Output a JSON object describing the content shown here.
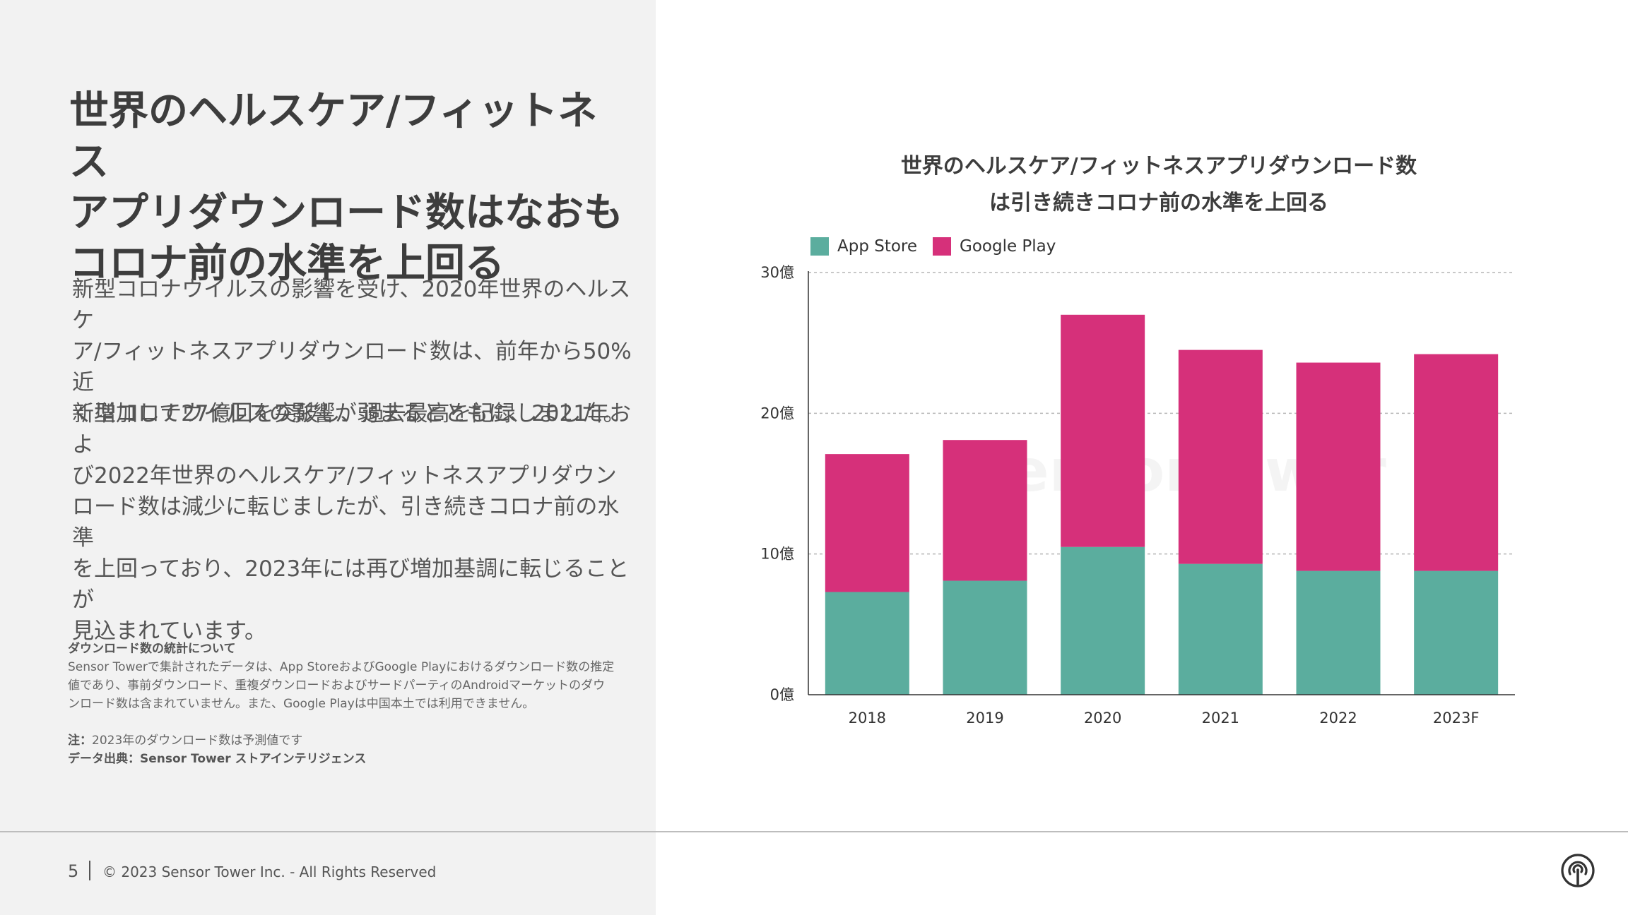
{
  "slide": {
    "title_lines": [
      "世界のヘルスケア/フィットネス",
      "アプリダウンロード数はなおも",
      "コロナ前の水準を上回る"
    ],
    "paragraph1_lines": [
      "新型コロナウイルスの影響を受け、2020年世界のヘルスケ",
      "ア/フィットネスアプリダウンロード数は、前年から50%近",
      "く増加して27億回を突破し、過去最高を記録しました。"
    ],
    "paragraph2_lines": [
      "新型コロナウイルスの影響が弱まるとともに、2021年およ",
      "び2022年世界のヘルスケア/フィットネスアプリダウン",
      "ロード数は減少に転じましたが、引き続きコロナ前の水準",
      "を上回っており、2023年には再び増加基調に転じることが",
      "見込まれています。"
    ],
    "notes": {
      "heading": "ダウンロード数の統計について",
      "body_lines": [
        "Sensor Towerで集計されたデータは、App StoreおよびGoogle Playにおけるダウンロード数の推定",
        "値であり、事前ダウンロード、重複ダウンロードおよびサードパーティのAndroidマーケットのダウ",
        "ンロード数は含まれていません。また、Google Playは中国本土では利用できません。"
      ],
      "note_label": "注：",
      "note_text": "2023年のダウンロード数は予測値です",
      "source": "データ出典：Sensor Tower ストアインテリジェンス"
    },
    "footer": {
      "page_number": "5",
      "copyright": "© 2023 Sensor Tower Inc. - All Rights Reserved"
    },
    "logo_icon": "sensor-tower-logo-icon",
    "watermark": "SensorTower"
  },
  "chart_data": {
    "type": "bar",
    "stacked": true,
    "title_lines": [
      "世界のヘルスケア/フィットネスアプリダウンロード数",
      "は引き続きコロナ前の水準を上回る"
    ],
    "categories": [
      "2018",
      "2019",
      "2020",
      "2021",
      "2022",
      "2023F"
    ],
    "series": [
      {
        "name": "App Store",
        "color": "#5BAD9E",
        "values": [
          7.3,
          8.1,
          10.5,
          9.3,
          8.8,
          8.8
        ]
      },
      {
        "name": "Google Play",
        "color": "#D6307A",
        "values": [
          9.8,
          10.0,
          16.5,
          15.2,
          14.8,
          15.4
        ]
      }
    ],
    "ylim": [
      0,
      30
    ],
    "yticks": [
      0,
      10,
      20,
      30
    ],
    "ytick_labels": [
      "0億",
      "10億",
      "20億",
      "30億"
    ],
    "xlabel": "",
    "ylabel": "",
    "grid": true,
    "legend_position": "top-left"
  }
}
